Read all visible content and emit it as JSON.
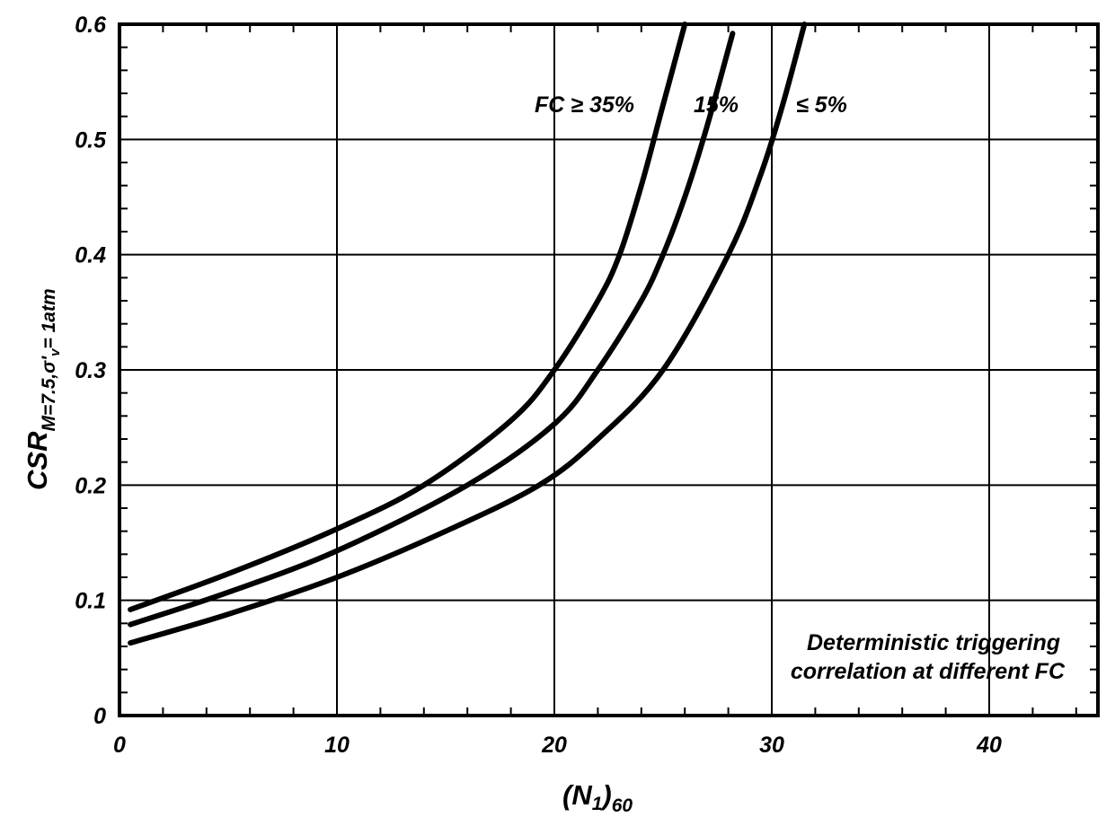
{
  "chart_data": {
    "type": "line",
    "title": "",
    "xlabel": {
      "main": "(N",
      "sub1": "1",
      "mid": ")",
      "sub2": "60"
    },
    "ylabel": {
      "main": "CSR",
      "sub": "M=7.5,σ'",
      "subsub": "v",
      "tail": "= 1atm"
    },
    "xlim": [
      0,
      45
    ],
    "ylim": [
      0,
      0.6
    ],
    "x_ticks": [
      0,
      10,
      20,
      30,
      40
    ],
    "x_tick_labels": [
      "0",
      "10",
      "20",
      "30",
      "40"
    ],
    "y_ticks": [
      0,
      0.1,
      0.2,
      0.3,
      0.4,
      0.5,
      0.6
    ],
    "y_tick_labels": [
      "0",
      "0.1",
      "0.2",
      "0.3",
      "0.4",
      "0.5",
      "0.6"
    ],
    "grid": true,
    "series": [
      {
        "name": "FC ≥ 35%",
        "x": [
          0.5,
          5,
          10,
          14,
          18,
          20,
          22,
          23,
          24,
          25,
          26
        ],
        "y": [
          0.092,
          0.123,
          0.162,
          0.2,
          0.256,
          0.3,
          0.36,
          0.4,
          0.46,
          0.53,
          0.6
        ]
      },
      {
        "name": "15%",
        "x": [
          0.5,
          5,
          10,
          16,
          20,
          22,
          24,
          25,
          26,
          27,
          28.2
        ],
        "y": [
          0.079,
          0.107,
          0.143,
          0.2,
          0.253,
          0.3,
          0.36,
          0.4,
          0.45,
          0.51,
          0.592
        ]
      },
      {
        "name": "≤ 5%",
        "x": [
          0.5,
          5,
          10,
          15,
          19.3,
          22,
          25,
          28,
          29.5,
          30.5,
          31.5
        ],
        "y": [
          0.063,
          0.088,
          0.12,
          0.16,
          0.2,
          0.24,
          0.3,
          0.4,
          0.47,
          0.53,
          0.6
        ]
      }
    ],
    "series_labels": [
      "FC ≥ 35%",
      "15%",
      "≤ 5%"
    ],
    "annotation": [
      "Deterministic triggering",
      "correlation at different FC"
    ]
  }
}
